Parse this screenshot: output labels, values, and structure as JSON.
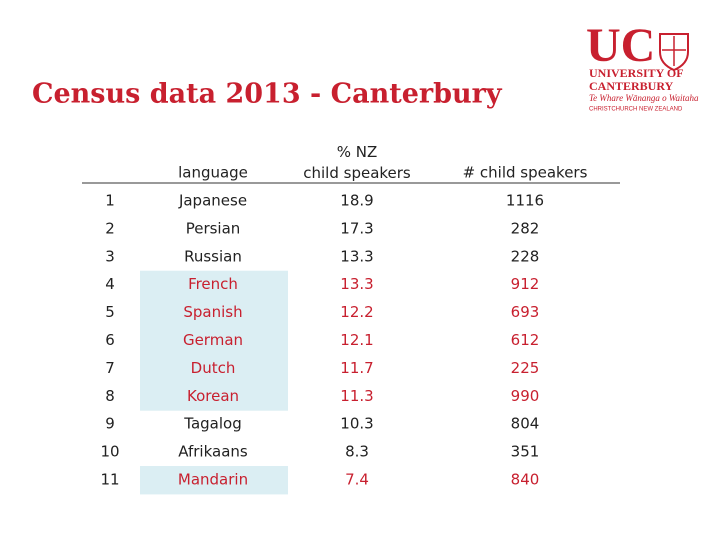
{
  "header": {
    "title": "Census data 2013 - Canterbury"
  },
  "logo": {
    "mark": "UC",
    "line1": "UNIVERSITY OF",
    "line2": "CANTERBURY",
    "line3": "Te Whare Wānanga o Waitaha",
    "line4": "CHRISTCHURCH NEW ZEALAND"
  },
  "table": {
    "columns": [
      "language",
      "% NZ child speakers",
      "# child speakers"
    ],
    "rows": [
      [
        "1",
        "Japanese",
        "18.9",
        "1116"
      ],
      [
        "2",
        "Persian",
        "17.3",
        "282"
      ],
      [
        "3",
        "Russian",
        "13.3",
        "228"
      ],
      [
        "4",
        "French",
        "13.3",
        "912"
      ],
      [
        "5",
        "Spanish",
        "12.2",
        "693"
      ],
      [
        "6",
        "German",
        "12.1",
        "612"
      ],
      [
        "7",
        "Dutch",
        "11.7",
        "225"
      ],
      [
        "8",
        "Korean",
        "11.3",
        "990"
      ],
      [
        "9",
        "Tagalog",
        "10.3",
        "804"
      ],
      [
        "10",
        "Afrikaans",
        "8.3",
        "351"
      ],
      [
        "11",
        "Mandarin",
        "7.4",
        "840"
      ]
    ]
  }
}
